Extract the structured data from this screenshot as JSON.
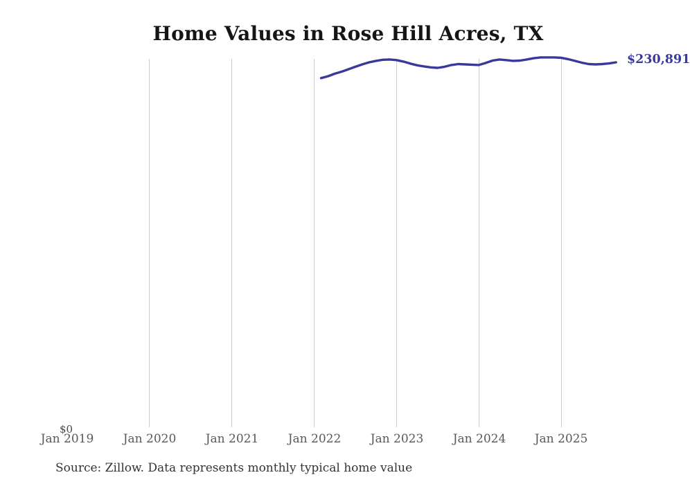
{
  "page": {
    "background": "#ffffff"
  },
  "chart_data": {
    "type": "line",
    "title": "Home Values in Rose Hill Acres, TX",
    "source_note": "Source: Zillow. Data represents monthly typical home value",
    "end_label": "$230,891",
    "end_value": 230891,
    "line_color": "#39399b",
    "grid_color": "#cccccc",
    "x_tick_labels": [
      "Jan 2019",
      "Jan 2020",
      "Jan 2021",
      "Jan 2022",
      "Jan 2023",
      "Jan 2024",
      "Jan 2025"
    ],
    "y_tick_labels": [
      "$0"
    ],
    "ylim": [
      0,
      240000
    ],
    "grid": "vertical-year-lines",
    "legend": "none",
    "x": [
      "2022-02",
      "2022-03",
      "2022-04",
      "2022-05",
      "2022-06",
      "2022-07",
      "2022-08",
      "2022-09",
      "2022-10",
      "2022-11",
      "2022-12",
      "2023-01",
      "2023-02",
      "2023-03",
      "2023-04",
      "2023-05",
      "2023-06",
      "2023-07",
      "2023-08",
      "2023-09",
      "2023-10",
      "2023-11",
      "2023-12",
      "2024-01",
      "2024-02",
      "2024-03",
      "2024-04",
      "2024-05",
      "2024-06",
      "2024-07",
      "2024-08",
      "2024-09",
      "2024-10",
      "2024-11",
      "2024-12",
      "2025-01",
      "2025-02",
      "2025-03",
      "2025-04",
      "2025-05",
      "2025-06",
      "2025-07",
      "2025-08",
      "2025-09"
    ],
    "values": [
      220900,
      222100,
      223700,
      225000,
      226500,
      228100,
      229600,
      230900,
      231800,
      232500,
      232700,
      232300,
      231400,
      230100,
      229000,
      228300,
      227700,
      227400,
      228100,
      229200,
      229800,
      229600,
      229400,
      229200,
      230500,
      232000,
      232700,
      232300,
      231800,
      232000,
      232700,
      233500,
      234000,
      234000,
      234000,
      233800,
      232900,
      231800,
      230700,
      229800,
      229600,
      229800,
      230200,
      230891
    ]
  }
}
